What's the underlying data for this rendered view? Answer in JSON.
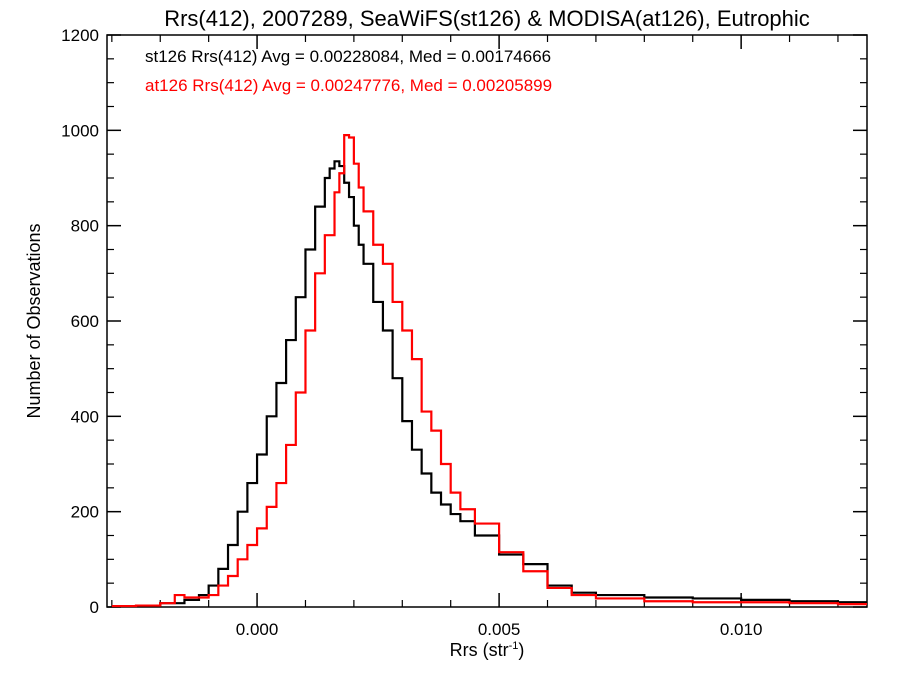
{
  "chart_data": {
    "type": "line",
    "title": "Rrs(412), 2007289, SeaWiFS(st126) & MODISA(at126), Eutrophic",
    "xlabel": "Rrs (str",
    "xlabel_sup": "-1",
    "xlabel_end": ")",
    "ylabel": "Number of Observations",
    "xlim": [
      -0.0031,
      0.0126
    ],
    "ylim": [
      0,
      1200
    ],
    "xticks": [
      0.0,
      0.005,
      0.01
    ],
    "xtick_labels": [
      "0.000",
      "0.005",
      "0.010"
    ],
    "yticks": [
      0,
      200,
      400,
      600,
      800,
      1000,
      1200
    ],
    "ytick_labels": [
      "0",
      "200",
      "400",
      "600",
      "800",
      "1000",
      "1200"
    ],
    "grid": false,
    "legend_position": "top-left",
    "series": [
      {
        "name": "st126 Rrs(412) Avg = 0.00228084, Med = 0.00174666",
        "color": "#000000",
        "x": [
          -0.003,
          -0.0025,
          -0.002,
          -0.0015,
          -0.0012,
          -0.001,
          -0.0008,
          -0.0006,
          -0.0004,
          -0.0002,
          0.0,
          0.0002,
          0.0004,
          0.0006,
          0.0008,
          0.001,
          0.0012,
          0.0014,
          0.0015,
          0.0016,
          0.0017,
          0.0018,
          0.0019,
          0.002,
          0.0021,
          0.0022,
          0.0024,
          0.0026,
          0.0028,
          0.003,
          0.0032,
          0.0034,
          0.0036,
          0.0038,
          0.004,
          0.0042,
          0.0045,
          0.005,
          0.0055,
          0.006,
          0.0065,
          0.007,
          0.008,
          0.009,
          0.01,
          0.011,
          0.012,
          0.0126
        ],
        "y": [
          2,
          3,
          8,
          15,
          25,
          45,
          80,
          130,
          200,
          260,
          320,
          400,
          470,
          560,
          650,
          750,
          840,
          900,
          920,
          935,
          925,
          890,
          860,
          800,
          760,
          720,
          640,
          580,
          480,
          390,
          330,
          280,
          240,
          215,
          195,
          180,
          150,
          110,
          90,
          45,
          30,
          25,
          20,
          18,
          15,
          12,
          10,
          10
        ]
      },
      {
        "name": "at126 Rrs(412) Avg = 0.00247776, Med = 0.00205899",
        "color": "#ff0000",
        "x": [
          -0.003,
          -0.0025,
          -0.002,
          -0.0017,
          -0.0015,
          -0.0012,
          -0.001,
          -0.0008,
          -0.0006,
          -0.0004,
          -0.0002,
          0.0,
          0.0002,
          0.0004,
          0.0006,
          0.0008,
          0.001,
          0.0012,
          0.0014,
          0.0016,
          0.0017,
          0.0018,
          0.0019,
          0.002,
          0.0021,
          0.0022,
          0.0024,
          0.0026,
          0.0028,
          0.003,
          0.0032,
          0.0034,
          0.0036,
          0.0038,
          0.004,
          0.0042,
          0.0045,
          0.005,
          0.0055,
          0.006,
          0.0065,
          0.007,
          0.008,
          0.009,
          0.01,
          0.011,
          0.012,
          0.0126
        ],
        "y": [
          2,
          3,
          8,
          25,
          20,
          20,
          25,
          45,
          65,
          100,
          130,
          165,
          210,
          260,
          340,
          450,
          580,
          700,
          780,
          870,
          910,
          990,
          985,
          930,
          880,
          830,
          760,
          720,
          640,
          580,
          520,
          410,
          370,
          300,
          240,
          205,
          175,
          115,
          75,
          40,
          25,
          18,
          12,
          10,
          10,
          8,
          6,
          6
        ]
      }
    ]
  }
}
